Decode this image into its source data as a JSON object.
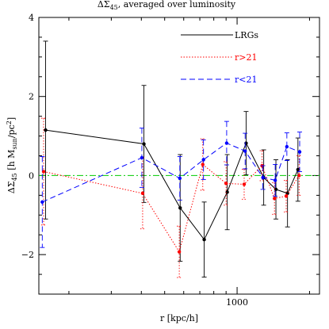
{
  "chart_data": {
    "type": "line",
    "title": "ΔΣ45, averaged over luminosity",
    "title_parts": {
      "main": "ΔΣ",
      "sub": "45",
      "rest": ", averaged over luminosity"
    },
    "xlabel": "r [kpc/h]",
    "ylabel": "ΔΣ45 [h Msun/pc²]",
    "ylabel_parts": {
      "main": "ΔΣ",
      "sub": "45",
      "mid": " [h M",
      "sub2": "sun",
      "mid2": "/pc",
      "sup": "2",
      "end": "]"
    },
    "x_scale": "log",
    "xlim": [
      150,
      2200
    ],
    "ylim": [
      -3,
      4
    ],
    "x_ticks": [
      1000
    ],
    "x_tick_labels": [
      "1000"
    ],
    "y_ticks": [
      -2,
      0,
      2,
      4
    ],
    "y_tick_labels": [
      "−2",
      "0",
      "2",
      "4"
    ],
    "reference_line": {
      "y": 0,
      "color": "#00cc00",
      "style": "dash-dot"
    },
    "legend_position": "top-right",
    "series": [
      {
        "name": "LRGs",
        "color": "#000000",
        "style": "solid",
        "x": [
          160,
          410,
          580,
          730,
          910,
          1090,
          1290,
          1450,
          1620,
          1790
        ],
        "y": [
          1.15,
          0.8,
          -0.82,
          -1.62,
          -0.42,
          0.82,
          -0.05,
          -0.35,
          -0.45,
          0.15
        ],
        "err": [
          2.25,
          1.48,
          1.35,
          0.95,
          0.95,
          0.8,
          0.7,
          0.75,
          0.85,
          0.8
        ]
      },
      {
        "name": "r>21",
        "color": "#ff0000",
        "style": "dotted",
        "x": [
          157,
          405,
          575,
          720,
          900,
          1070,
          1270,
          1430,
          1600,
          1810
        ],
        "y": [
          0.1,
          -0.45,
          -1.93,
          0.28,
          -0.2,
          -0.22,
          0.25,
          -0.58,
          -0.52,
          0.0
        ],
        "err": [
          1.35,
          0.9,
          0.65,
          0.65,
          0.55,
          0.38,
          0.38,
          0.4,
          0.4,
          0.5
        ]
      },
      {
        "name": "r<21",
        "color": "#0000ff",
        "style": "dashed",
        "x": [
          155,
          402,
          578,
          725,
          905,
          1080,
          1280,
          1440,
          1610,
          1820
        ],
        "y": [
          -0.67,
          0.45,
          -0.07,
          0.4,
          0.82,
          0.62,
          -0.05,
          -0.12,
          0.73,
          0.6
        ],
        "err": [
          1.15,
          0.75,
          0.55,
          0.5,
          0.55,
          0.45,
          0.3,
          0.4,
          0.35,
          0.5
        ]
      }
    ]
  }
}
